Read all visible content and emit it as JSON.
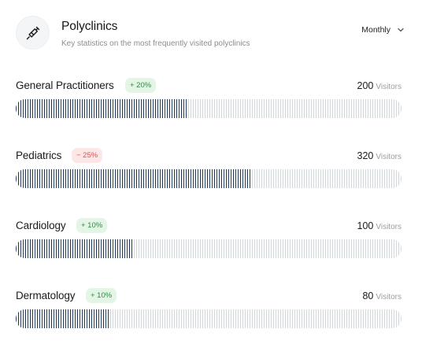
{
  "header": {
    "title": "Polyclinics",
    "subtitle": "Key statistics on the most frequently visited polyclinics",
    "logo_icon": "syringe-icon",
    "period_label": "Monthly",
    "period_icon": "chevron-down-icon"
  },
  "visitor_unit": "Visitors",
  "rows": [
    {
      "name": "General Practitioners",
      "change": "+ 20%",
      "trend": "up",
      "visitors": "200",
      "fill_fraction": 0.445
    },
    {
      "name": "Pediatrics",
      "change": "− 25%",
      "trend": "down",
      "visitors": "320",
      "fill_fraction": 0.61
    },
    {
      "name": "Cardiology",
      "change": "+ 10%",
      "trend": "up",
      "visitors": "100",
      "fill_fraction": 0.305
    },
    {
      "name": "Dermatology",
      "change": "+ 10%",
      "trend": "up",
      "visitors": "80",
      "fill_fraction": 0.245
    }
  ],
  "colors": {
    "fill": "#243a5e",
    "track": "#d4d7db",
    "up_bg": "#e3f6e6",
    "up_text": "#2e8b43",
    "down_bg": "#fce6e6",
    "down_text": "#d85858"
  }
}
